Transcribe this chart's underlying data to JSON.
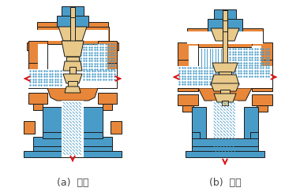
{
  "title_a": "(a)  分流",
  "title_b": "(b)  合流",
  "bg_color": "#ffffff",
  "orange": "#E8873A",
  "blue": "#4A9CC8",
  "beige": "#E8C98A",
  "dark": "#1A1A1A",
  "red": "#DD1111",
  "title_fontsize": 9,
  "title_color": "#444444",
  "fig_width": 3.8,
  "fig_height": 2.48,
  "dpi": 100
}
